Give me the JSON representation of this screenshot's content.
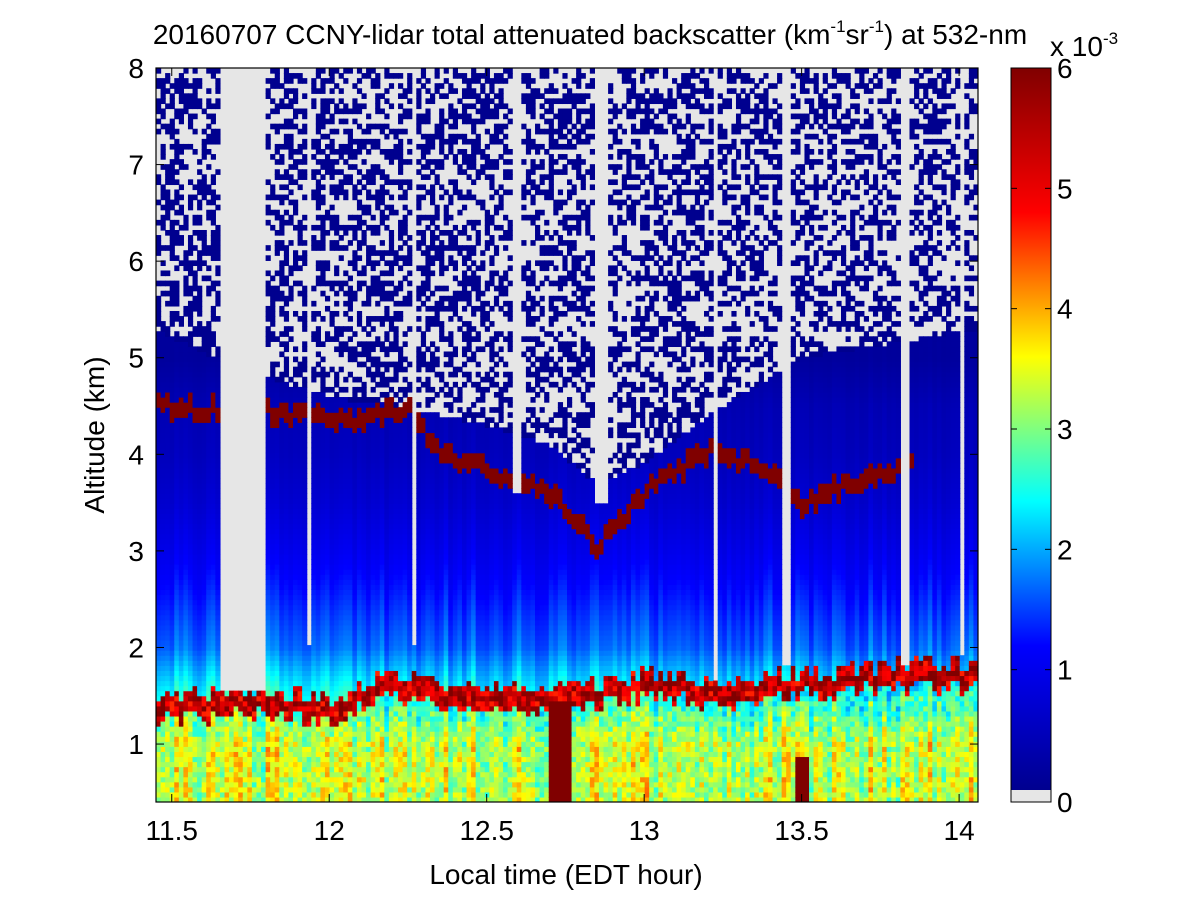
{
  "chart_data": {
    "type": "heatmap",
    "title": {
      "prefix": "20160707 CCNY-lidar total attenuated backscatter (km",
      "exp1": "-1",
      "middle": "sr",
      "exp2": "-1",
      "suffix": ") at 532-nm"
    },
    "xlabel": "Local time (EDT hour)",
    "ylabel": "Altitude (km)",
    "xlim": [
      11.45,
      14.06
    ],
    "ylim": [
      0.4,
      8
    ],
    "xticks": [
      11.5,
      12,
      12.5,
      13,
      13.5,
      14
    ],
    "xtick_labels": [
      "11.5",
      "12",
      "12.5",
      "13",
      "13.5",
      "14"
    ],
    "yticks": [
      1,
      2,
      3,
      4,
      5,
      6,
      7,
      8
    ],
    "ytick_labels": [
      "1",
      "2",
      "3",
      "4",
      "5",
      "6",
      "7",
      "8"
    ],
    "colorbar": {
      "range": [
        0,
        0.006
      ],
      "ticks": [
        0,
        1,
        2,
        3,
        4,
        5,
        6
      ],
      "tick_labels": [
        "0",
        "1",
        "2",
        "3",
        "4",
        "5",
        "6"
      ],
      "multiplier_base": "x 10",
      "multiplier_exp": "-3",
      "colormap": "jet",
      "zero_color": "#e6e6e6"
    },
    "colormap_stops": [
      "#00008f",
      "#0000ff",
      "#00ffff",
      "#ffff00",
      "#ff0000",
      "#800000"
    ],
    "profile_altitudes_km": [
      1.0,
      2.0,
      3.0,
      3.5,
      4.0,
      4.5,
      5.0,
      8.0
    ],
    "profile_values_e3": [
      3.4,
      1.7,
      1.0,
      0.7,
      0.5,
      0.4,
      0.15,
      0.1
    ],
    "boundary_layer_top_km": [
      {
        "x": 11.45,
        "y": 1.4
      },
      {
        "x": 11.6,
        "y": 1.4
      },
      {
        "x": 11.8,
        "y": 1.45
      },
      {
        "x": 12.0,
        "y": 1.35
      },
      {
        "x": 12.2,
        "y": 1.6
      },
      {
        "x": 12.4,
        "y": 1.5
      },
      {
        "x": 12.6,
        "y": 1.5
      },
      {
        "x": 12.8,
        "y": 1.5
      },
      {
        "x": 13.0,
        "y": 1.6
      },
      {
        "x": 13.2,
        "y": 1.55
      },
      {
        "x": 13.4,
        "y": 1.6
      },
      {
        "x": 13.6,
        "y": 1.65
      },
      {
        "x": 13.8,
        "y": 1.7
      },
      {
        "x": 14.06,
        "y": 1.7
      }
    ],
    "cloud_base_km": [
      {
        "x": 11.45,
        "y": 4.5
      },
      {
        "x": 11.8,
        "y": 4.45
      },
      {
        "x": 12.1,
        "y": 4.35
      },
      {
        "x": 12.25,
        "y": 4.5
      },
      {
        "x": 12.35,
        "y": 4.0
      },
      {
        "x": 12.5,
        "y": 3.85
      },
      {
        "x": 12.7,
        "y": 3.6
      },
      {
        "x": 12.85,
        "y": 3.05
      },
      {
        "x": 13.0,
        "y": 3.6
      },
      {
        "x": 13.2,
        "y": 4.05
      },
      {
        "x": 13.4,
        "y": 3.85
      },
      {
        "x": 13.5,
        "y": 3.5
      },
      {
        "x": 13.7,
        "y": 3.75
      },
      {
        "x": 13.85,
        "y": 3.9
      }
    ],
    "clear_air_above_cloud_km": [
      {
        "x": 11.45,
        "y": 5.3
      },
      {
        "x": 11.7,
        "y": 4.9
      },
      {
        "x": 12.0,
        "y": 4.6
      },
      {
        "x": 12.3,
        "y": 4.45
      },
      {
        "x": 12.5,
        "y": 4.3
      },
      {
        "x": 12.7,
        "y": 4.1
      },
      {
        "x": 12.85,
        "y": 3.7
      },
      {
        "x": 13.0,
        "y": 3.9
      },
      {
        "x": 13.2,
        "y": 4.4
      },
      {
        "x": 13.5,
        "y": 5.0
      },
      {
        "x": 14.06,
        "y": 5.3
      }
    ],
    "data_gaps": [
      {
        "x0": 11.65,
        "x1": 11.8,
        "y0": 1.55
      },
      {
        "x0": 11.925,
        "x1": 11.94,
        "y0": 2.0
      },
      {
        "x0": 12.255,
        "x1": 12.27,
        "y0": 2.0
      },
      {
        "x0": 12.58,
        "x1": 12.605,
        "y0": 3.6
      },
      {
        "x0": 12.845,
        "x1": 12.885,
        "y0": 3.5
      },
      {
        "x0": 13.225,
        "x1": 13.24,
        "y0": 1.65
      },
      {
        "x0": 13.44,
        "x1": 13.46,
        "y0": 1.8
      },
      {
        "x0": 13.82,
        "x1": 13.845,
        "y0": 1.8
      },
      {
        "x0": 14.0,
        "x1": 14.01,
        "y0": 1.9
      }
    ],
    "thick_plumes": [
      {
        "x0": 12.69,
        "x1": 12.77,
        "y0": 0.4,
        "y1": 1.45
      },
      {
        "x0": 13.48,
        "x1": 13.52,
        "y0": 0.4,
        "y1": 0.85
      }
    ]
  }
}
